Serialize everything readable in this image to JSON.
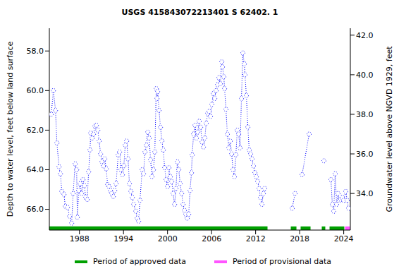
{
  "chart_data": {
    "type": "line",
    "title": "USGS 415843072213401 S 62402. 1",
    "y_label": "Depth to water level, feet below land surface",
    "y2_label": "Groundwater level above NGVD 1929, feet",
    "color": "#0000ff",
    "marker": "circle",
    "line_style": "dotted",
    "grid": false,
    "x": [
      1984.16,
      1984.45,
      1984.74,
      1984.93,
      1985.22,
      1985.41,
      1985.6,
      1985.89,
      1986.08,
      1986.37,
      1986.66,
      1986.94,
      1987.14,
      1987.42,
      1987.62,
      1987.71,
      1987.9,
      1988.1,
      1988.29,
      1988.48,
      1988.67,
      1988.86,
      1989.06,
      1989.25,
      1989.44,
      1989.54,
      1989.73,
      1989.92,
      1990.11,
      1990.3,
      1990.5,
      1990.69,
      1990.88,
      1991.07,
      1991.26,
      1991.45,
      1991.65,
      1991.84,
      1992.03,
      1992.22,
      1992.41,
      1992.61,
      1992.8,
      1992.99,
      1993.28,
      1993.47,
      1993.66,
      1993.85,
      1994.05,
      1994.24,
      1994.43,
      1994.62,
      1994.81,
      1995.01,
      1995.2,
      1995.39,
      1995.68,
      1995.87,
      1996.06,
      1996.25,
      1996.54,
      1996.73,
      1996.93,
      1997.12,
      1997.31,
      1997.5,
      1997.69,
      1997.88,
      1998.08,
      1998.27,
      1998.46,
      1998.56,
      1998.65,
      1998.84,
      1999.04,
      1999.23,
      1999.42,
      1999.61,
      1999.8,
      2000.0,
      2000.19,
      2000.38,
      2000.57,
      2000.76,
      2000.96,
      2001.15,
      2001.34,
      2001.53,
      2001.72,
      2001.92,
      2002.11,
      2002.3,
      2002.49,
      2002.68,
      2002.88,
      2003.07,
      2003.26,
      2003.36,
      2003.55,
      2003.74,
      2003.93,
      2004.12,
      2004.31,
      2004.51,
      2004.7,
      2004.89,
      2005.08,
      2005.27,
      2005.47,
      2005.66,
      2005.85,
      2006.04,
      2006.23,
      2006.43,
      2006.62,
      2006.81,
      2007.0,
      2007.19,
      2007.39,
      2007.48,
      2007.67,
      2007.77,
      2007.96,
      2008.15,
      2008.35,
      2008.54,
      2008.73,
      2008.92,
      2009.11,
      2009.31,
      2009.5,
      2009.69,
      2009.88,
      2010.07,
      2010.26,
      2010.46,
      2010.55,
      2010.74,
      2010.94,
      2011.13,
      2011.32,
      2011.51,
      2011.7,
      2011.9,
      2012.09,
      2012.28,
      2012.47,
      2012.66,
      2012.86,
      2013.05,
      2013.24,
      2015.0,
      2016.98,
      2017.37,
      2017.8,
      2018.33,
      2019.29,
      2020.3,
      2021.3,
      2021.8,
      2022.26,
      2022.45,
      2022.64,
      2022.84,
      2023.03,
      2023.22,
      2023.41,
      2023.6,
      2023.8,
      2023.99,
      2024.28,
      2024.47,
      2024.66
    ],
    "values": [
      61.2,
      60.0,
      61.0,
      62.65,
      63.85,
      64.2,
      65.1,
      65.25,
      65.85,
      65.9,
      66.35,
      66.7,
      65.2,
      63.7,
      64.0,
      66.4,
      65.05,
      64.7,
      65.2,
      64.5,
      64.8,
      65.4,
      65.5,
      64.1,
      63.0,
      62.15,
      62.4,
      62.2,
      61.8,
      61.75,
      62.0,
      62.55,
      63.2,
      63.6,
      63.8,
      63.45,
      63.95,
      64.75,
      64.85,
      65.05,
      65.2,
      65.35,
      65.05,
      64.7,
      63.25,
      63.1,
      64.0,
      64.25,
      63.8,
      62.75,
      62.55,
      63.45,
      64.7,
      65.1,
      65.4,
      65.75,
      66.1,
      66.45,
      66.6,
      65.55,
      64.0,
      64.2,
      63.1,
      62.75,
      62.1,
      62.4,
      63.5,
      64.35,
      64.0,
      63.1,
      59.9,
      60.4,
      60.05,
      61.0,
      61.85,
      62.55,
      63.0,
      63.9,
      64.5,
      64.85,
      63.9,
      64.35,
      64.6,
      65.2,
      65.75,
      64.95,
      63.6,
      64.0,
      64.7,
      65.2,
      65.75,
      66.05,
      66.25,
      66.45,
      66.25,
      65.05,
      64.15,
      63.25,
      62.2,
      61.75,
      62.4,
      62.1,
      61.55,
      61.85,
      62.6,
      62.85,
      62.4,
      61.65,
      61.15,
      61.05,
      61.3,
      60.7,
      60.15,
      60.4,
      60.0,
      59.7,
      59.35,
      59.65,
      58.55,
      58.8,
      59.3,
      59.9,
      60.95,
      62.2,
      62.9,
      62.55,
      63.2,
      64.0,
      64.35,
      63.25,
      62.0,
      62.2,
      62.9,
      60.4,
      58.1,
      58.65,
      59.2,
      60.25,
      61.85,
      63.0,
      63.2,
      63.45,
      63.8,
      64.15,
      64.35,
      64.6,
      64.95,
      65.4,
      65.75,
      65.2,
      64.95,
      null,
      65.95,
      65.2,
      null,
      64.25,
      62.2,
      null,
      63.55,
      null,
      64.5,
      65.75,
      66.1,
      64.2,
      65.75,
      65.2,
      65.55,
      65.5,
      65.4,
      65.55,
      65.1,
      65.55,
      65.95
    ],
    "xlim": [
      1983.9,
      2024.9
    ],
    "xticks": [
      1988,
      1994,
      2000,
      2006,
      2012,
      2018,
      2024
    ],
    "ylim": [
      56.85,
      67.05
    ],
    "yticks": [
      {
        "value": 58,
        "label": "58.0"
      },
      {
        "value": 60,
        "label": "60.0"
      },
      {
        "value": 62,
        "label": "62.0"
      },
      {
        "value": 64,
        "label": "64.0"
      },
      {
        "value": 66,
        "label": "66.0"
      }
    ],
    "y2lim": [
      32.15,
      42.35
    ],
    "y2ticks": [
      {
        "value": 34,
        "label": "34.0"
      },
      {
        "value": 36,
        "label": "36.0"
      },
      {
        "value": 38,
        "label": "38.0"
      },
      {
        "value": 40,
        "label": "40.0"
      },
      {
        "value": 42,
        "label": "42.0"
      }
    ],
    "periods": [
      {
        "name": "Period of approved data",
        "color": "#00a000",
        "ranges": [
          [
            1983.9,
            2013.62
          ],
          [
            2016.79,
            2017.56
          ],
          [
            2018.13,
            2019.48
          ],
          [
            2021.01,
            2021.49
          ],
          [
            2022.07,
            2024.08
          ]
        ]
      },
      {
        "name": "Period of provisional data",
        "color": "#ff55ff",
        "ranges": [
          [
            2024.18,
            2024.85
          ]
        ]
      }
    ]
  }
}
